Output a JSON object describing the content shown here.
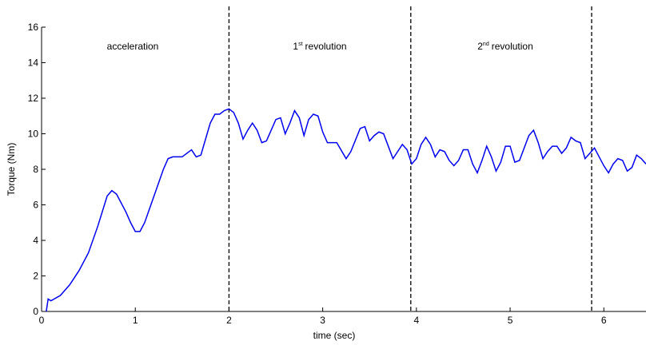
{
  "chart_data": {
    "type": "line",
    "x_label": "time (sec)",
    "y_label": "Torque (Nm)",
    "x": [
      0.05,
      0.07,
      0.1,
      0.2,
      0.3,
      0.4,
      0.5,
      0.6,
      0.7,
      0.75,
      0.8,
      0.9,
      0.95,
      1.0,
      1.05,
      1.1,
      1.2,
      1.3,
      1.35,
      1.4,
      1.5,
      1.6,
      1.65,
      1.7,
      1.8,
      1.85,
      1.9,
      1.95,
      2.0,
      2.05,
      2.1,
      2.15,
      2.2,
      2.25,
      2.3,
      2.35,
      2.4,
      2.5,
      2.55,
      2.6,
      2.65,
      2.7,
      2.75,
      2.8,
      2.85,
      2.9,
      2.95,
      3.0,
      3.05,
      3.15,
      3.25,
      3.3,
      3.4,
      3.45,
      3.5,
      3.55,
      3.6,
      3.65,
      3.7,
      3.75,
      3.8,
      3.85,
      3.9,
      3.95,
      4.0,
      4.05,
      4.1,
      4.15,
      4.2,
      4.25,
      4.3,
      4.35,
      4.4,
      4.45,
      4.5,
      4.55,
      4.6,
      4.65,
      4.7,
      4.75,
      4.8,
      4.85,
      4.9,
      4.95,
      5.0,
      5.05,
      5.1,
      5.2,
      5.25,
      5.3,
      5.35,
      5.4,
      5.45,
      5.5,
      5.55,
      5.6,
      5.65,
      5.7,
      5.75,
      5.8,
      5.85,
      5.9,
      5.95,
      6.0,
      6.05,
      6.1,
      6.15,
      6.2,
      6.25,
      6.3,
      6.35,
      6.4,
      6.45
    ],
    "series": [
      {
        "color": "#0000ee",
        "values": [
          0,
          0.7,
          0.6,
          0.9,
          1.5,
          2.3,
          3.3,
          4.8,
          6.5,
          6.8,
          6.6,
          5.6,
          5.0,
          4.5,
          4.5,
          5.0,
          6.5,
          8.0,
          8.6,
          8.7,
          8.7,
          9.1,
          8.7,
          8.8,
          10.6,
          11.1,
          11.1,
          11.3,
          11.4,
          11.2,
          10.6,
          9.7,
          10.2,
          10.6,
          10.2,
          9.5,
          9.6,
          10.8,
          10.9,
          10.0,
          10.6,
          11.3,
          10.9,
          9.9,
          10.8,
          11.1,
          11.0,
          10.1,
          9.5,
          9.5,
          8.6,
          9.0,
          10.3,
          10.4,
          9.6,
          9.9,
          10.1,
          10.0,
          9.3,
          8.6,
          9.0,
          9.4,
          9.1,
          8.3,
          8.6,
          9.4,
          9.8,
          9.4,
          8.7,
          9.1,
          9.0,
          8.5,
          8.2,
          8.5,
          9.1,
          9.1,
          8.3,
          7.8,
          8.5,
          9.3,
          8.7,
          7.9,
          8.4,
          9.3,
          9.3,
          8.4,
          8.5,
          9.9,
          10.2,
          9.5,
          8.6,
          9.0,
          9.3,
          9.3,
          8.9,
          9.2,
          9.8,
          9.6,
          9.5,
          8.6,
          8.9,
          9.2,
          8.7,
          8.2,
          7.8,
          8.3,
          8.6,
          8.5,
          7.9,
          8.1,
          8.8,
          8.6,
          8.3
        ]
      }
    ],
    "xlim": [
      0,
      6.45
    ],
    "ylim": [
      0,
      16
    ],
    "xticks": [
      0,
      1,
      2,
      3,
      4,
      5,
      6
    ],
    "yticks": [
      0,
      2,
      4,
      6,
      8,
      10,
      12,
      14,
      16
    ],
    "vlines": [
      2,
      3.94,
      5.87
    ],
    "annotations": [
      {
        "text": "acceleration"
      },
      {
        "text": "1",
        "sup": "st",
        "rest": "revolution"
      },
      {
        "text": "2",
        "sup": "nd",
        "rest": "revolution"
      }
    ]
  }
}
